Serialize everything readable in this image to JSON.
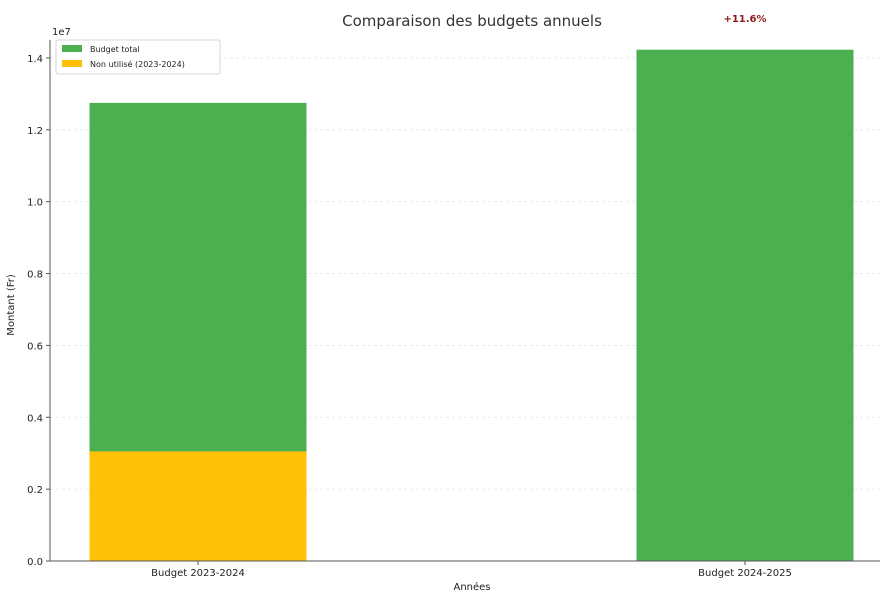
{
  "chart_data": {
    "type": "bar",
    "title": "Comparaison des budgets annuels",
    "xlabel": "Années",
    "ylabel": "Montant (Fr)",
    "y_offset_label": "1e7",
    "ylim": [
      0,
      14500000
    ],
    "yticks": [
      0,
      2000000,
      4000000,
      6000000,
      8000000,
      10000000,
      12000000,
      14000000
    ],
    "ytick_labels": [
      "0.0",
      "0.2",
      "0.4",
      "0.6",
      "0.8",
      "1.0",
      "1.2",
      "1.4"
    ],
    "categories": [
      "Budget 2023-2024",
      "Budget 2024-2025"
    ],
    "series": [
      {
        "name": "Budget total",
        "color": "#4caf50",
        "values": [
          12750000,
          14230000
        ]
      },
      {
        "name": "Non utilisé (2023-2024)",
        "color": "#ffc107",
        "values": [
          3050000,
          null
        ]
      }
    ],
    "annotations": [
      {
        "text": "+11.6%",
        "category": "Budget 2024-2025",
        "y": 15500000,
        "color": "#8b1a1a"
      }
    ],
    "grid": true,
    "legend_position": "upper left"
  }
}
